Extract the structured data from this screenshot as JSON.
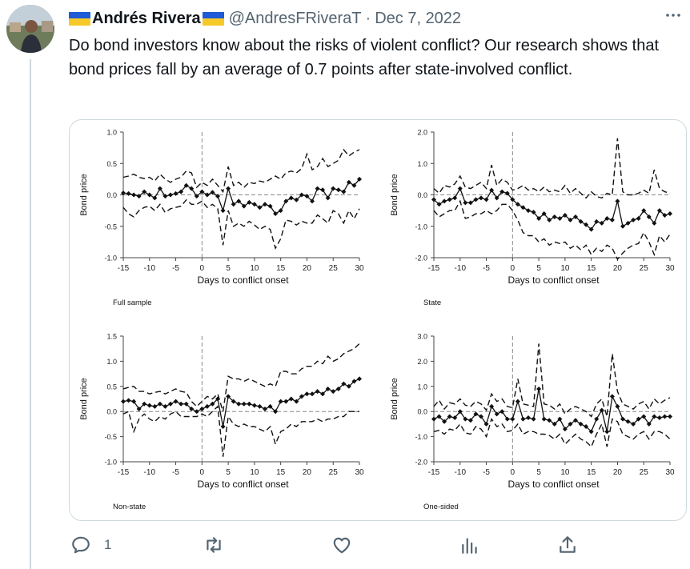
{
  "tweet": {
    "author_name": "Andrés Rivera",
    "handle": "@AndresFRiveraT",
    "separator": "·",
    "date": "Dec 7, 2022",
    "text": "Do bond investors know about the risks of violent conflict? Our research shows that bond prices fall by an average of 0.7 points after state-involved conflict.",
    "more_icon": "ellipsis-icon"
  },
  "actions": {
    "reply_count": "1",
    "icons": [
      "reply-icon",
      "retweet-icon",
      "like-icon",
      "views-icon",
      "share-icon"
    ]
  },
  "colors": {
    "flag_blue": "#1f5bd6",
    "flag_yellow": "#f7c928",
    "secondary_text": "#536471"
  },
  "chart_data": [
    {
      "type": "line",
      "panel_label": "Full sample",
      "xlabel": "Days to conflict onset",
      "ylabel": "Bond price",
      "xlim": [
        -15,
        30
      ],
      "ylim": [
        -1.0,
        1.0
      ],
      "xticks": [
        "-15",
        "-10",
        "-5",
        "0",
        "5",
        "10",
        "15",
        "20",
        "25",
        "30"
      ],
      "yticks": [
        "1.0",
        "0.5",
        "0.0",
        "-0.5",
        "-1.0"
      ],
      "x": [
        -15,
        -14,
        -13,
        -12,
        -11,
        -10,
        -9,
        -8,
        -7,
        -6,
        -5,
        -4,
        -3,
        -2,
        -1,
        0,
        1,
        2,
        3,
        4,
        5,
        6,
        7,
        8,
        9,
        10,
        11,
        12,
        13,
        14,
        15,
        16,
        17,
        18,
        19,
        20,
        21,
        22,
        23,
        24,
        25,
        26,
        27,
        28,
        29,
        30
      ],
      "estimate": [
        0.03,
        0.02,
        0.0,
        -0.02,
        0.05,
        0.0,
        -0.05,
        0.1,
        -0.02,
        0.0,
        0.02,
        0.05,
        0.15,
        0.1,
        -0.02,
        0.05,
        0.0,
        0.04,
        -0.02,
        -0.25,
        0.1,
        -0.15,
        -0.1,
        -0.18,
        -0.12,
        -0.15,
        -0.2,
        -0.15,
        -0.18,
        -0.3,
        -0.25,
        -0.1,
        -0.05,
        -0.08,
        0.0,
        -0.02,
        -0.1,
        0.1,
        0.08,
        -0.05,
        0.1,
        0.08,
        0.05,
        0.2,
        0.15,
        0.25
      ],
      "upper": [
        0.28,
        0.3,
        0.33,
        0.28,
        0.26,
        0.28,
        0.22,
        0.33,
        0.25,
        0.2,
        0.25,
        0.28,
        0.38,
        0.35,
        0.12,
        0.2,
        0.15,
        0.25,
        0.15,
        0.05,
        0.45,
        0.15,
        0.2,
        0.12,
        0.2,
        0.18,
        0.22,
        0.2,
        0.25,
        0.3,
        0.25,
        0.35,
        0.38,
        0.35,
        0.42,
        0.65,
        0.4,
        0.45,
        0.58,
        0.45,
        0.5,
        0.55,
        0.72,
        0.62,
        0.68,
        0.72
      ],
      "lower": [
        -0.2,
        -0.3,
        -0.35,
        -0.25,
        -0.2,
        -0.18,
        -0.25,
        -0.15,
        -0.28,
        -0.22,
        -0.2,
        -0.18,
        -0.08,
        -0.15,
        -0.15,
        -0.1,
        -0.2,
        -0.15,
        -0.22,
        -0.8,
        -0.25,
        -0.5,
        -0.45,
        -0.5,
        -0.42,
        -0.48,
        -0.55,
        -0.5,
        -0.55,
        -0.85,
        -0.7,
        -0.4,
        -0.42,
        -0.48,
        -0.42,
        -0.45,
        -0.45,
        -0.32,
        -0.38,
        -0.45,
        -0.25,
        -0.3,
        -0.45,
        -0.25,
        -0.38,
        -0.22
      ]
    },
    {
      "type": "line",
      "panel_label": "State",
      "xlabel": "Days to conflict onset",
      "ylabel": "Bond price",
      "xlim": [
        -15,
        30
      ],
      "ylim": [
        -2.0,
        2.0
      ],
      "xticks": [
        "-15",
        "-10",
        "-5",
        "0",
        "5",
        "10",
        "15",
        "20",
        "25",
        "30"
      ],
      "yticks": [
        "2.0",
        "1.0",
        "0.0",
        "-1.0",
        "-2.0"
      ],
      "x": [
        -15,
        -14,
        -13,
        -12,
        -11,
        -10,
        -9,
        -8,
        -7,
        -6,
        -5,
        -4,
        -3,
        -2,
        -1,
        0,
        1,
        2,
        3,
        4,
        5,
        6,
        7,
        8,
        9,
        10,
        11,
        12,
        13,
        14,
        15,
        16,
        17,
        18,
        19,
        20,
        21,
        22,
        23,
        24,
        25,
        26,
        27,
        28,
        29,
        30
      ],
      "estimate": [
        -0.15,
        -0.3,
        -0.2,
        -0.15,
        -0.1,
        0.2,
        -0.25,
        -0.25,
        -0.15,
        -0.1,
        -0.15,
        0.15,
        -0.1,
        0.1,
        0.05,
        -0.15,
        -0.3,
        -0.4,
        -0.5,
        -0.55,
        -0.75,
        -0.6,
        -0.8,
        -0.7,
        -0.75,
        -0.65,
        -0.8,
        -0.7,
        -0.85,
        -0.95,
        -1.1,
        -0.85,
        -0.9,
        -0.75,
        -0.8,
        -0.2,
        -1.0,
        -0.9,
        -0.8,
        -0.75,
        -0.5,
        -0.7,
        -0.9,
        -0.5,
        -0.65,
        -0.6
      ],
      "upper": [
        0.2,
        0.05,
        0.3,
        0.25,
        0.35,
        0.6,
        0.25,
        0.2,
        0.3,
        0.4,
        0.2,
        0.95,
        0.3,
        0.5,
        0.4,
        0.15,
        0.2,
        0.3,
        0.15,
        0.2,
        0.1,
        0.25,
        0.1,
        0.15,
        0.1,
        0.3,
        0.05,
        0.2,
        0.05,
        -0.1,
        0.1,
        -0.05,
        -0.1,
        0.05,
        0.0,
        1.8,
        0.1,
        0.0,
        0.0,
        0.05,
        0.15,
        0.05,
        0.8,
        0.2,
        0.1,
        0.05
      ],
      "lower": [
        -0.5,
        -0.7,
        -0.6,
        -0.5,
        -0.5,
        -0.2,
        -0.75,
        -0.7,
        -0.6,
        -0.6,
        -0.5,
        -0.6,
        -0.5,
        -0.3,
        -0.3,
        -0.5,
        -0.8,
        -1.2,
        -1.3,
        -1.3,
        -1.5,
        -1.4,
        -1.6,
        -1.5,
        -1.55,
        -1.5,
        -1.7,
        -1.6,
        -1.75,
        -1.6,
        -1.9,
        -1.7,
        -1.8,
        -1.6,
        -1.7,
        -2.05,
        -1.85,
        -1.7,
        -1.6,
        -1.55,
        -1.2,
        -1.5,
        -1.9,
        -1.3,
        -1.5,
        -1.25
      ]
    },
    {
      "type": "line",
      "panel_label": "Non-state",
      "xlabel": "Days to conflict onset",
      "ylabel": "Bond price",
      "xlim": [
        -15,
        30
      ],
      "ylim": [
        -1.0,
        1.5
      ],
      "xticks": [
        "-15",
        "-10",
        "-5",
        "0",
        "5",
        "10",
        "15",
        "20",
        "25",
        "30"
      ],
      "yticks": [
        "1.5",
        "1.0",
        "0.5",
        "0.0",
        "-0.5",
        "-1.0"
      ],
      "x": [
        -15,
        -14,
        -13,
        -12,
        -11,
        -10,
        -9,
        -8,
        -7,
        -6,
        -5,
        -4,
        -3,
        -2,
        -1,
        0,
        1,
        2,
        3,
        4,
        5,
        6,
        7,
        8,
        9,
        10,
        11,
        12,
        13,
        14,
        15,
        16,
        17,
        18,
        19,
        20,
        21,
        22,
        23,
        24,
        25,
        26,
        27,
        28,
        29,
        30
      ],
      "estimate": [
        0.2,
        0.22,
        0.2,
        0.05,
        0.15,
        0.12,
        0.1,
        0.15,
        0.1,
        0.15,
        0.2,
        0.15,
        0.15,
        0.05,
        0.0,
        0.05,
        0.1,
        0.15,
        0.25,
        -0.3,
        0.3,
        0.2,
        0.15,
        0.15,
        0.15,
        0.12,
        0.1,
        0.05,
        0.1,
        0.0,
        0.2,
        0.2,
        0.25,
        0.2,
        0.3,
        0.35,
        0.35,
        0.4,
        0.35,
        0.45,
        0.4,
        0.45,
        0.55,
        0.5,
        0.6,
        0.65
      ],
      "upper": [
        0.45,
        0.48,
        0.5,
        0.4,
        0.4,
        0.35,
        0.38,
        0.4,
        0.35,
        0.4,
        0.45,
        0.4,
        0.38,
        0.2,
        0.1,
        0.2,
        0.3,
        0.25,
        0.35,
        0.0,
        0.7,
        0.65,
        0.65,
        0.6,
        0.65,
        0.6,
        0.55,
        0.5,
        0.55,
        0.5,
        0.8,
        0.8,
        0.75,
        0.75,
        0.85,
        0.9,
        0.9,
        1.0,
        0.95,
        1.1,
        1.0,
        1.05,
        1.15,
        1.2,
        1.25,
        1.35
      ],
      "lower": [
        -0.05,
        0.0,
        -0.4,
        -0.15,
        -0.05,
        -0.15,
        -0.2,
        -0.1,
        -0.15,
        -0.05,
        0.0,
        -0.1,
        -0.1,
        -0.1,
        -0.1,
        -0.05,
        -0.1,
        0.0,
        0.1,
        -0.9,
        -0.1,
        -0.25,
        -0.3,
        -0.25,
        -0.3,
        -0.3,
        -0.35,
        -0.4,
        -0.3,
        -0.65,
        -0.4,
        -0.35,
        -0.25,
        -0.3,
        -0.2,
        -0.2,
        -0.2,
        -0.15,
        -0.2,
        -0.15,
        -0.15,
        -0.1,
        -0.1,
        0.0,
        0.0,
        0.0
      ]
    },
    {
      "type": "line",
      "panel_label": "One-sided",
      "xlabel": "Days to conflict onset",
      "ylabel": "Bond price",
      "xlim": [
        -15,
        30
      ],
      "ylim": [
        -2.0,
        3.0
      ],
      "xticks": [
        "-15",
        "-10",
        "-5",
        "0",
        "5",
        "10",
        "15",
        "20",
        "25",
        "30"
      ],
      "yticks": [
        "3.0",
        "2.0",
        "1.0",
        "0.0",
        "-1.0",
        "-2.0"
      ],
      "x": [
        -15,
        -14,
        -13,
        -12,
        -11,
        -10,
        -9,
        -8,
        -7,
        -6,
        -5,
        -4,
        -3,
        -2,
        -1,
        0,
        1,
        2,
        3,
        4,
        5,
        6,
        7,
        8,
        9,
        10,
        11,
        12,
        13,
        14,
        15,
        16,
        17,
        18,
        19,
        20,
        21,
        22,
        23,
        24,
        25,
        26,
        27,
        28,
        29,
        30
      ],
      "estimate": [
        -0.3,
        -0.2,
        -0.4,
        -0.2,
        -0.25,
        0.0,
        -0.3,
        -0.35,
        -0.1,
        -0.2,
        -0.5,
        0.2,
        -0.1,
        0.0,
        -0.3,
        -0.3,
        0.4,
        -0.3,
        -0.25,
        -0.3,
        0.9,
        -0.3,
        -0.35,
        -0.5,
        -0.3,
        -0.7,
        -0.5,
        -0.35,
        -0.5,
        -0.6,
        -0.8,
        -0.3,
        0.05,
        -0.8,
        0.6,
        0.2,
        -0.3,
        -0.4,
        -0.5,
        -0.3,
        -0.2,
        -0.5,
        -0.2,
        -0.25,
        -0.2,
        -0.2
      ],
      "upper": [
        0.2,
        0.45,
        0.1,
        0.35,
        0.3,
        0.5,
        0.25,
        0.2,
        0.4,
        0.3,
        0.05,
        0.7,
        0.4,
        0.5,
        0.2,
        0.15,
        1.3,
        0.3,
        0.25,
        0.2,
        2.7,
        0.3,
        0.25,
        0.1,
        0.3,
        -0.1,
        0.1,
        0.2,
        0.1,
        0.0,
        -0.2,
        0.3,
        0.5,
        -0.2,
        2.3,
        0.8,
        0.3,
        0.2,
        0.1,
        0.3,
        0.4,
        0.1,
        0.5,
        0.3,
        0.45,
        0.55
      ],
      "lower": [
        -0.8,
        -0.75,
        -0.9,
        -0.7,
        -0.75,
        -0.5,
        -0.85,
        -0.9,
        -0.6,
        -0.7,
        -1.0,
        -0.3,
        -0.6,
        -0.5,
        -0.8,
        -0.75,
        -0.5,
        -0.9,
        -0.8,
        -0.8,
        -0.9,
        -0.9,
        -0.95,
        -1.1,
        -0.9,
        -1.3,
        -1.1,
        -0.9,
        -1.1,
        -1.2,
        -1.4,
        -0.9,
        -0.5,
        -1.4,
        -0.3,
        -0.4,
        -0.9,
        -1.0,
        -1.1,
        -0.9,
        -0.8,
        -1.1,
        -0.8,
        -0.8,
        -0.9,
        -1.1
      ]
    }
  ]
}
